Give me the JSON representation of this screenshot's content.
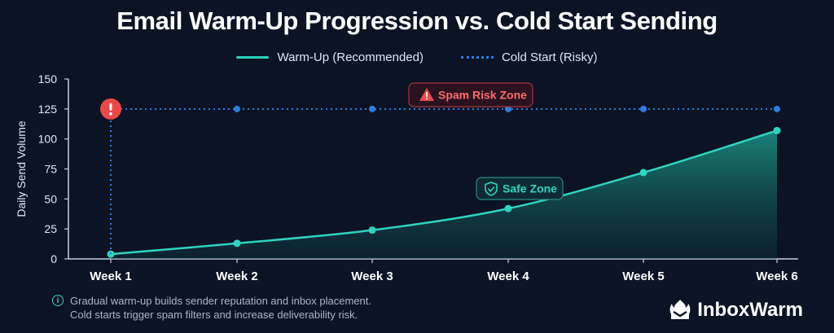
{
  "chart_data": {
    "type": "line",
    "title": "Email Warm-Up Progression vs. Cold Start Sending",
    "xlabel": "",
    "ylabel": "Daily Send Volume",
    "categories": [
      "Week 1",
      "Week 2",
      "Week 3",
      "Week 4",
      "Week 5",
      "Week 6"
    ],
    "ylim": [
      0,
      150
    ],
    "yticks": [
      0,
      25,
      50,
      75,
      100,
      125,
      150
    ],
    "grid": false,
    "legend_position": "top-center",
    "series": [
      {
        "name": "Warm-Up (Recommended)",
        "values": [
          4,
          13,
          24,
          42,
          72,
          107
        ],
        "color": "#2fd3c1",
        "style": "solid-area"
      },
      {
        "name": "Cold Start (Risky)",
        "values": [
          125,
          125,
          125,
          125,
          125,
          125
        ],
        "color": "#2f7de1",
        "style": "dotted"
      }
    ],
    "annotations": {
      "spam_zone": "Spam Risk Zone",
      "safe_zone": "Safe Zone"
    }
  },
  "footnote": {
    "line1": "Gradual warm-up builds sender reputation and inbox placement.",
    "line2": "Cold starts trigger spam filters and increase deliverability risk."
  },
  "brand": {
    "name": "InboxWarm"
  },
  "icons": {
    "alert": "alert-circle-icon",
    "warning": "warning-triangle-icon",
    "shield": "shield-check-icon",
    "info": "info-icon",
    "logo": "inboxwarm-logo-icon"
  },
  "colors": {
    "background": "#0b1324",
    "warm_up": "#2fd3c1",
    "cold_start": "#2f7de1",
    "danger": "#e84a4a"
  }
}
